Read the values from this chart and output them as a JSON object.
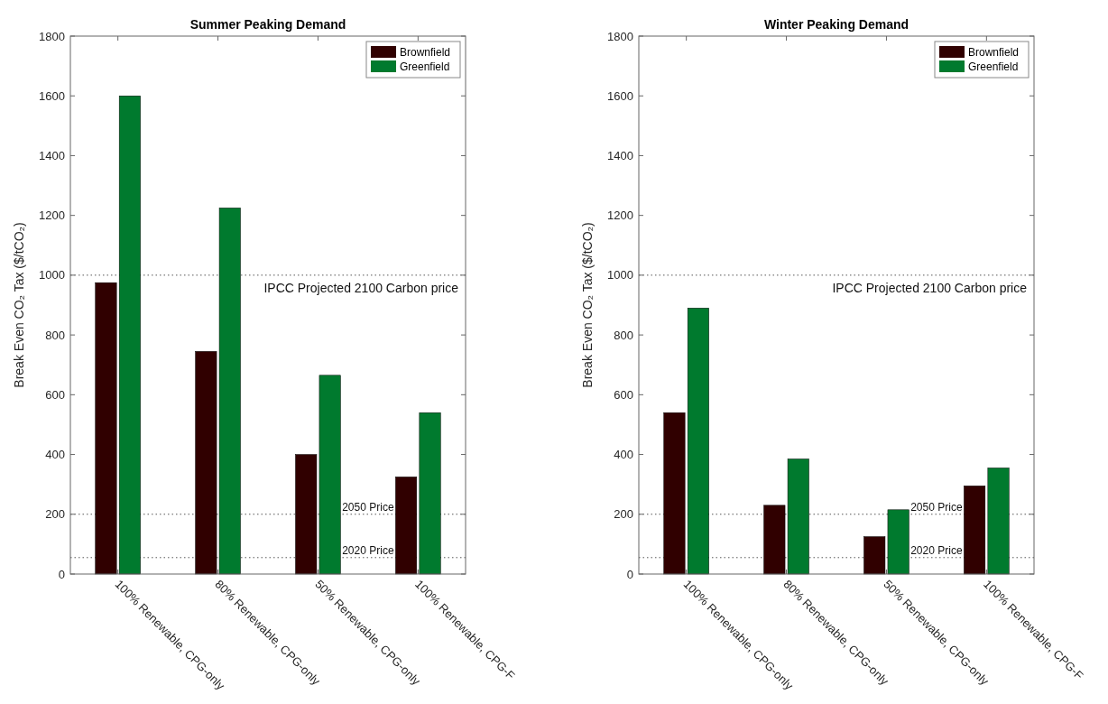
{
  "chart_data": [
    {
      "type": "bar",
      "title": "Summer Peaking Demand",
      "ylabel": "Break Even CO₂ Tax ($/tCO₂)",
      "categories": [
        "100% Renewable, CPG-only",
        "80% Renewable, CPG-only",
        "50% Renewable, CPG-only",
        "100% Renewable, CPG-F"
      ],
      "series": [
        {
          "name": "Brownfield",
          "color": "#300000",
          "values": [
            975,
            745,
            400,
            325
          ]
        },
        {
          "name": "Greenfield",
          "color": "#007a2e",
          "values": [
            1600,
            1225,
            665,
            540
          ]
        }
      ],
      "ylim": [
        0,
        1800
      ],
      "yticks": [
        0,
        200,
        400,
        600,
        800,
        1000,
        1200,
        1400,
        1600,
        1800
      ],
      "grid": false,
      "legend": "top right",
      "ref_lines": [
        {
          "axis": "y",
          "value": 1000,
          "label": "IPCC Projected 2100 Carbon price",
          "color": "#555555",
          "line_style": "dotted"
        },
        {
          "axis": "y",
          "value": 200,
          "label": "2050 Price",
          "color": "#555555",
          "line_style": "dotted"
        },
        {
          "axis": "y",
          "value": 55,
          "label": "2020 Price",
          "color": "#555555",
          "line_style": "dotted"
        }
      ]
    },
    {
      "type": "bar",
      "title": "Winter Peaking Demand",
      "ylabel": "Break Even CO₂ Tax ($/tCO₂)",
      "categories": [
        "100% Renewable, CPG-only",
        "80% Renewable, CPG-only",
        "50% Renewable, CPG-only",
        "100% Renewable, CPG-F"
      ],
      "series": [
        {
          "name": "Brownfield",
          "color": "#300000",
          "values": [
            540,
            230,
            125,
            295
          ]
        },
        {
          "name": "Greenfield",
          "color": "#007a2e",
          "values": [
            890,
            385,
            215,
            355
          ]
        }
      ],
      "ylim": [
        0,
        1800
      ],
      "yticks": [
        0,
        200,
        400,
        600,
        800,
        1000,
        1200,
        1400,
        1600,
        1800
      ],
      "grid": false,
      "legend": "top right",
      "ref_lines": [
        {
          "axis": "y",
          "value": 1000,
          "label": "IPCC Projected 2100 Carbon price",
          "color": "#555555",
          "line_style": "dotted"
        },
        {
          "axis": "y",
          "value": 200,
          "label": "2050 Price",
          "color": "#555555",
          "line_style": "dotted"
        },
        {
          "axis": "y",
          "value": 55,
          "label": "2020 Price",
          "color": "#555555",
          "line_style": "dotted"
        }
      ]
    }
  ]
}
